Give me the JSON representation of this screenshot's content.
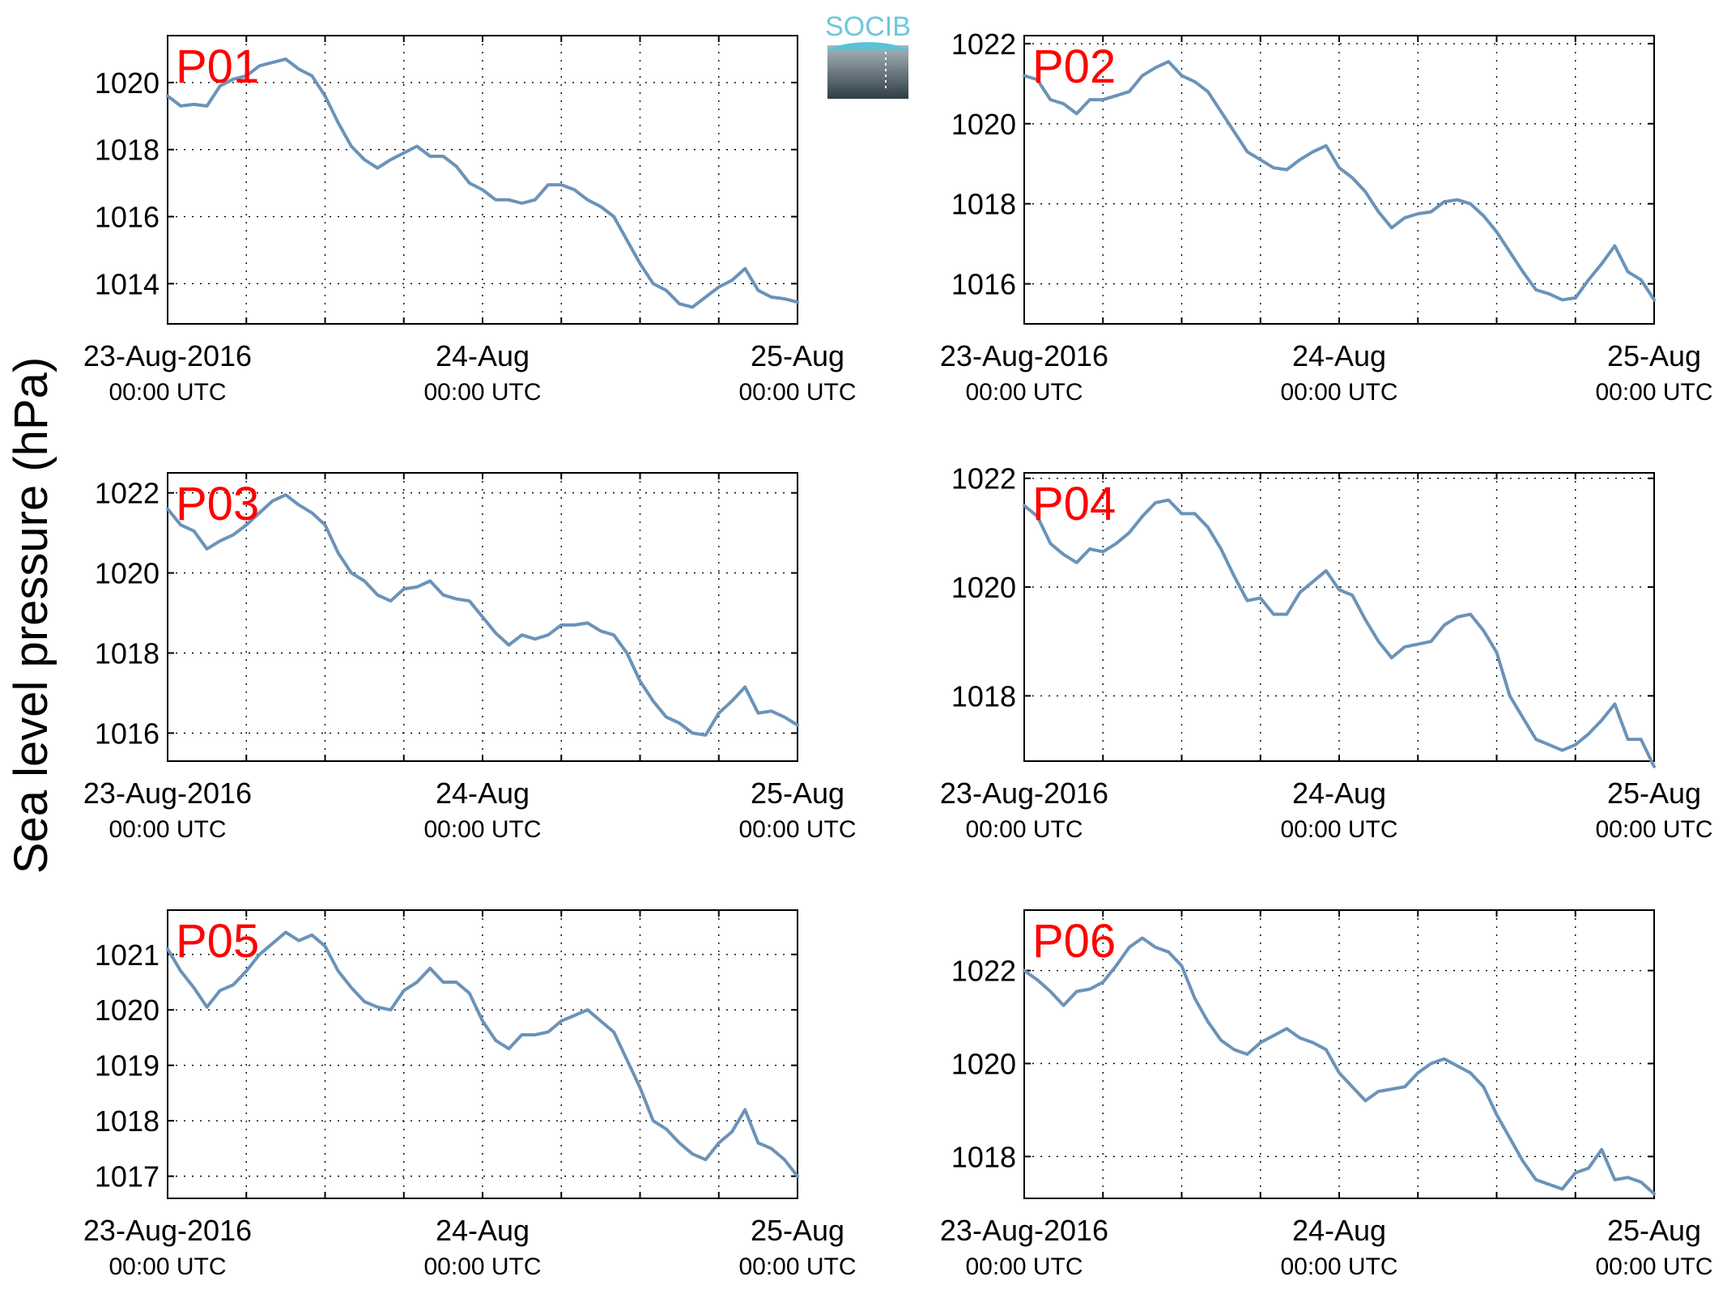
{
  "figure": {
    "ylabel": "Sea level pressure (hPa)",
    "logo_text": "SOCIB",
    "line_color": "#6b93b8",
    "label_color": "#ff0000"
  },
  "chart_data": [
    {
      "type": "line",
      "panel_label": "P01",
      "xlim": [
        0,
        48
      ],
      "ylim": [
        1012.8,
        1021.4
      ],
      "yticks": [
        1014,
        1016,
        1018,
        1020
      ],
      "x_tick_labels": [
        {
          "x": 0,
          "date": "23-Aug-2016",
          "time": "00:00 UTC"
        },
        {
          "x": 24,
          "date": "24-Aug",
          "time": "00:00 UTC"
        },
        {
          "x": 48,
          "date": "25-Aug",
          "time": "00:00 UTC"
        }
      ],
      "x_grid": [
        6,
        12,
        18,
        24,
        30,
        36,
        42
      ],
      "grid": true,
      "x": [
        0,
        1,
        2,
        3,
        4,
        5,
        6,
        7,
        8,
        9,
        10,
        11,
        12,
        13,
        14,
        15,
        16,
        17,
        18,
        19,
        20,
        21,
        22,
        23,
        24,
        25,
        26,
        27,
        28,
        29,
        30,
        31,
        32,
        33,
        34,
        35,
        36,
        37,
        38,
        39,
        40,
        41,
        42,
        43,
        44,
        45,
        46,
        47,
        48
      ],
      "y": [
        1019.6,
        1019.3,
        1019.35,
        1019.3,
        1019.9,
        1020.1,
        1020.2,
        1020.5,
        1020.6,
        1020.7,
        1020.4,
        1020.2,
        1019.6,
        1018.8,
        1018.1,
        1017.7,
        1017.45,
        1017.7,
        1017.9,
        1018.1,
        1017.8,
        1017.8,
        1017.5,
        1017.0,
        1016.8,
        1016.5,
        1016.5,
        1016.4,
        1016.5,
        1016.95,
        1016.95,
        1016.8,
        1016.5,
        1016.3,
        1016.0,
        1015.3,
        1014.6,
        1014.0,
        1013.8,
        1013.4,
        1013.3,
        1013.6,
        1013.9,
        1014.1,
        1014.45,
        1013.8,
        1013.6,
        1013.55,
        1013.45
      ]
    },
    {
      "type": "line",
      "panel_label": "P02",
      "xlim": [
        0,
        48
      ],
      "ylim": [
        1015.0,
        1022.2
      ],
      "yticks": [
        1016,
        1018,
        1020,
        1022
      ],
      "x_tick_labels": [
        {
          "x": 0,
          "date": "23-Aug-2016",
          "time": "00:00 UTC"
        },
        {
          "x": 24,
          "date": "24-Aug",
          "time": "00:00 UTC"
        },
        {
          "x": 48,
          "date": "25-Aug",
          "time": "00:00 UTC"
        }
      ],
      "x_grid": [
        6,
        12,
        18,
        24,
        30,
        36,
        42
      ],
      "grid": true,
      "x": [
        0,
        1,
        2,
        3,
        4,
        5,
        6,
        7,
        8,
        9,
        10,
        11,
        12,
        13,
        14,
        15,
        16,
        17,
        18,
        19,
        20,
        21,
        22,
        23,
        24,
        25,
        26,
        27,
        28,
        29,
        30,
        31,
        32,
        33,
        34,
        35,
        36,
        37,
        38,
        39,
        40,
        41,
        42,
        43,
        44,
        45,
        46,
        47,
        48
      ],
      "y": [
        1021.2,
        1021.1,
        1020.6,
        1020.5,
        1020.25,
        1020.6,
        1020.6,
        1020.7,
        1020.8,
        1021.2,
        1021.4,
        1021.55,
        1021.2,
        1021.05,
        1020.8,
        1020.3,
        1019.8,
        1019.3,
        1019.1,
        1018.9,
        1018.85,
        1019.1,
        1019.3,
        1019.45,
        1018.9,
        1018.65,
        1018.3,
        1017.8,
        1017.4,
        1017.65,
        1017.75,
        1017.8,
        1018.05,
        1018.1,
        1018.0,
        1017.7,
        1017.3,
        1016.8,
        1016.3,
        1015.85,
        1015.75,
        1015.6,
        1015.65,
        1016.1,
        1016.5,
        1016.95,
        1016.3,
        1016.1,
        1015.6
      ]
    },
    {
      "type": "line",
      "panel_label": "P03",
      "xlim": [
        0,
        48
      ],
      "ylim": [
        1015.3,
        1022.5
      ],
      "yticks": [
        1016,
        1018,
        1020,
        1022
      ],
      "x_tick_labels": [
        {
          "x": 0,
          "date": "23-Aug-2016",
          "time": "00:00 UTC"
        },
        {
          "x": 24,
          "date": "24-Aug",
          "time": "00:00 UTC"
        },
        {
          "x": 48,
          "date": "25-Aug",
          "time": "00:00 UTC"
        }
      ],
      "x_grid": [
        6,
        12,
        18,
        24,
        30,
        36,
        42
      ],
      "grid": true,
      "x": [
        0,
        1,
        2,
        3,
        4,
        5,
        6,
        7,
        8,
        9,
        10,
        11,
        12,
        13,
        14,
        15,
        16,
        17,
        18,
        19,
        20,
        21,
        22,
        23,
        24,
        25,
        26,
        27,
        28,
        29,
        30,
        31,
        32,
        33,
        34,
        35,
        36,
        37,
        38,
        39,
        40,
        41,
        42,
        43,
        44,
        45,
        46,
        47,
        48
      ],
      "y": [
        1021.6,
        1021.2,
        1021.05,
        1020.6,
        1020.8,
        1020.95,
        1021.2,
        1021.5,
        1021.8,
        1021.95,
        1021.7,
        1021.5,
        1021.2,
        1020.5,
        1020.0,
        1019.8,
        1019.45,
        1019.3,
        1019.6,
        1019.65,
        1019.8,
        1019.45,
        1019.35,
        1019.3,
        1018.9,
        1018.5,
        1018.2,
        1018.45,
        1018.35,
        1018.45,
        1018.7,
        1018.7,
        1018.75,
        1018.55,
        1018.45,
        1018.0,
        1017.3,
        1016.8,
        1016.4,
        1016.25,
        1016.0,
        1015.95,
        1016.5,
        1016.8,
        1017.15,
        1016.5,
        1016.55,
        1016.4,
        1016.2
      ]
    },
    {
      "type": "line",
      "panel_label": "P04",
      "xlim": [
        0,
        48
      ],
      "ylim": [
        1016.8,
        1022.1
      ],
      "yticks": [
        1018,
        1020,
        1022
      ],
      "x_tick_labels": [
        {
          "x": 0,
          "date": "23-Aug-2016",
          "time": "00:00 UTC"
        },
        {
          "x": 24,
          "date": "24-Aug",
          "time": "00:00 UTC"
        },
        {
          "x": 48,
          "date": "25-Aug",
          "time": "00:00 UTC"
        }
      ],
      "x_grid": [
        6,
        12,
        18,
        24,
        30,
        36,
        42
      ],
      "grid": true,
      "x": [
        0,
        1,
        2,
        3,
        4,
        5,
        6,
        7,
        8,
        9,
        10,
        11,
        12,
        13,
        14,
        15,
        16,
        17,
        18,
        19,
        20,
        21,
        22,
        23,
        24,
        25,
        26,
        27,
        28,
        29,
        30,
        31,
        32,
        33,
        34,
        35,
        36,
        37,
        38,
        39,
        40,
        41,
        42,
        43,
        44,
        45,
        46,
        47,
        48
      ],
      "y": [
        1021.5,
        1021.3,
        1020.8,
        1020.6,
        1020.45,
        1020.7,
        1020.65,
        1020.8,
        1021.0,
        1021.3,
        1021.55,
        1021.6,
        1021.35,
        1021.35,
        1021.1,
        1020.7,
        1020.2,
        1019.75,
        1019.8,
        1019.5,
        1019.5,
        1019.9,
        1020.1,
        1020.3,
        1019.95,
        1019.85,
        1019.4,
        1019.0,
        1018.7,
        1018.9,
        1018.95,
        1019.0,
        1019.3,
        1019.45,
        1019.5,
        1019.2,
        1018.8,
        1018.0,
        1017.6,
        1017.2,
        1017.1,
        1017.0,
        1017.1,
        1017.3,
        1017.55,
        1017.85,
        1017.2,
        1017.2,
        1016.7
      ]
    },
    {
      "type": "line",
      "panel_label": "P05",
      "xlim": [
        0,
        48
      ],
      "ylim": [
        1016.6,
        1021.8
      ],
      "yticks": [
        1017,
        1018,
        1019,
        1020,
        1021
      ],
      "x_tick_labels": [
        {
          "x": 0,
          "date": "23-Aug-2016",
          "time": "00:00 UTC"
        },
        {
          "x": 24,
          "date": "24-Aug",
          "time": "00:00 UTC"
        },
        {
          "x": 48,
          "date": "25-Aug",
          "time": "00:00 UTC"
        }
      ],
      "x_grid": [
        6,
        12,
        18,
        24,
        30,
        36,
        42
      ],
      "grid": true,
      "x": [
        0,
        1,
        2,
        3,
        4,
        5,
        6,
        7,
        8,
        9,
        10,
        11,
        12,
        13,
        14,
        15,
        16,
        17,
        18,
        19,
        20,
        21,
        22,
        23,
        24,
        25,
        26,
        27,
        28,
        29,
        30,
        31,
        32,
        33,
        34,
        35,
        36,
        37,
        38,
        39,
        40,
        41,
        42,
        43,
        44,
        45,
        46,
        47,
        48
      ],
      "y": [
        1021.1,
        1020.7,
        1020.4,
        1020.05,
        1020.35,
        1020.45,
        1020.7,
        1021.0,
        1021.2,
        1021.4,
        1021.25,
        1021.35,
        1021.15,
        1020.7,
        1020.4,
        1020.15,
        1020.05,
        1020.0,
        1020.35,
        1020.5,
        1020.75,
        1020.5,
        1020.5,
        1020.3,
        1019.8,
        1019.45,
        1019.3,
        1019.55,
        1019.55,
        1019.6,
        1019.8,
        1019.9,
        1020.0,
        1019.8,
        1019.6,
        1019.1,
        1018.6,
        1018.0,
        1017.85,
        1017.6,
        1017.4,
        1017.3,
        1017.6,
        1017.8,
        1018.2,
        1017.6,
        1017.5,
        1017.3,
        1017.0
      ]
    },
    {
      "type": "line",
      "panel_label": "P06",
      "xlim": [
        0,
        48
      ],
      "ylim": [
        1017.1,
        1023.3
      ],
      "yticks": [
        1018,
        1020,
        1022
      ],
      "x_tick_labels": [
        {
          "x": 0,
          "date": "23-Aug-2016",
          "time": "00:00 UTC"
        },
        {
          "x": 24,
          "date": "24-Aug",
          "time": "00:00 UTC"
        },
        {
          "x": 48,
          "date": "25-Aug",
          "time": "00:00 UTC"
        }
      ],
      "x_grid": [
        6,
        12,
        18,
        24,
        30,
        36,
        42
      ],
      "grid": true,
      "x": [
        0,
        1,
        2,
        3,
        4,
        5,
        6,
        7,
        8,
        9,
        10,
        11,
        12,
        13,
        14,
        15,
        16,
        17,
        18,
        19,
        20,
        21,
        22,
        23,
        24,
        25,
        26,
        27,
        28,
        29,
        30,
        31,
        32,
        33,
        34,
        35,
        36,
        37,
        38,
        39,
        40,
        41,
        42,
        43,
        44,
        45,
        46,
        47,
        48
      ],
      "y": [
        1022.0,
        1021.8,
        1021.55,
        1021.25,
        1021.55,
        1021.6,
        1021.75,
        1022.1,
        1022.5,
        1022.7,
        1022.5,
        1022.4,
        1022.1,
        1021.4,
        1020.9,
        1020.5,
        1020.3,
        1020.2,
        1020.45,
        1020.6,
        1020.75,
        1020.55,
        1020.45,
        1020.3,
        1019.8,
        1019.5,
        1019.2,
        1019.4,
        1019.45,
        1019.5,
        1019.8,
        1020.0,
        1020.1,
        1019.95,
        1019.8,
        1019.5,
        1018.9,
        1018.4,
        1017.9,
        1017.5,
        1017.4,
        1017.3,
        1017.65,
        1017.75,
        1018.15,
        1017.5,
        1017.55,
        1017.45,
        1017.2
      ]
    }
  ]
}
